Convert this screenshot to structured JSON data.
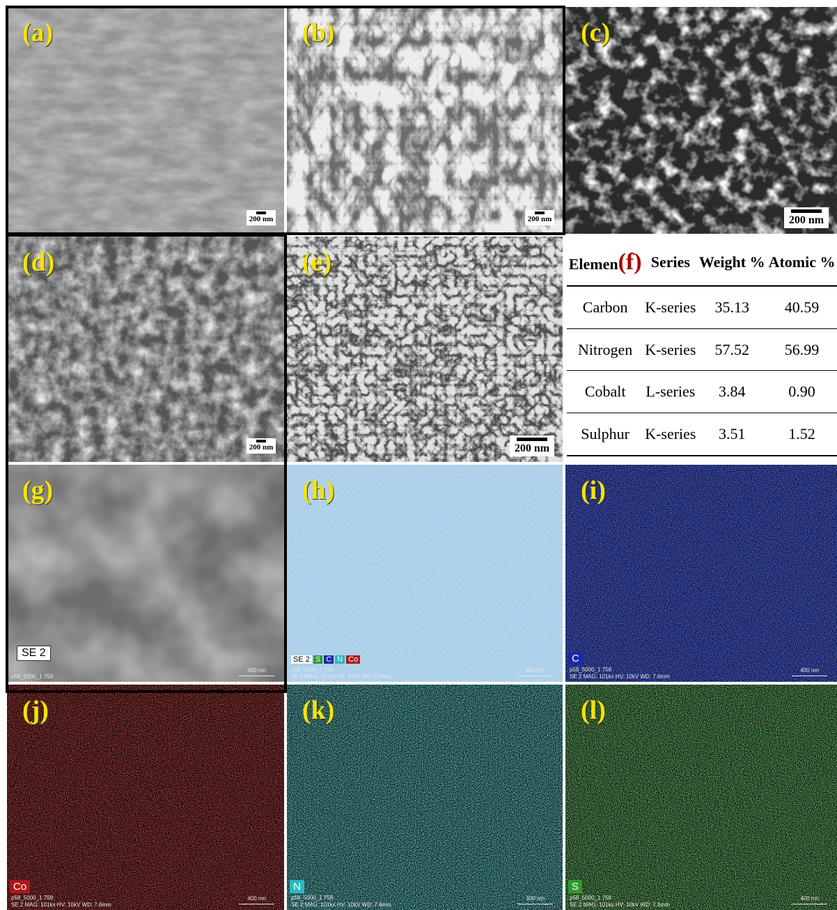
{
  "panels": {
    "a": {
      "label": "(a)",
      "scale": "200 nm"
    },
    "b": {
      "label": "(b)",
      "scale": "200 nm"
    },
    "c": {
      "label": "(c)",
      "scale": "200 nm"
    },
    "d": {
      "label": "(d)",
      "scale": "200 nm"
    },
    "e": {
      "label": "(e)",
      "scale": "200 nm"
    },
    "g": {
      "label": "(g)",
      "badge": "SE 2",
      "footer1": "p58_5000_1 758",
      "scale": "400 nm"
    },
    "h": {
      "label": "(h)",
      "chips": [
        "SE 2",
        "S",
        "C",
        "N",
        "Co"
      ],
      "footer1": "p58_5000_1 758",
      "footer2": "SE 2 MAG: 101kx HV: 10kV WD: 7.6mm",
      "scale": "400 nm"
    },
    "i": {
      "label": "(i)",
      "badge": "C",
      "footer1": "p58_5000_1 758",
      "footer2": "SE 2 MAG: 101kx HV: 10kV WD: 7.6mm",
      "scale": "400 nm"
    },
    "j": {
      "label": "(j)",
      "badge": "Co",
      "footer1": "p58_5000_1 758",
      "footer2": "SE 2 MAG: 101kx HV: 10kV WD: 7.6mm",
      "scale": "400 nm"
    },
    "k": {
      "label": "(k)",
      "badge": "N",
      "footer1": "p58_5000_1 758",
      "footer2": "SE 2 MAG: 101kx HV: 10kV WD: 7.6mm",
      "scale": "400 nm"
    },
    "l": {
      "label": "(l)",
      "badge": "S",
      "footer1": "p58_5000_1 758",
      "footer2": "SE 2 MAG: 101kx HV: 10kV WD: 7.6mm",
      "scale": "400 nm"
    }
  },
  "table": {
    "panel_label": "(f)",
    "headers": [
      "Elemen",
      "Series",
      "Weight %",
      "Atomic %"
    ],
    "rows": [
      {
        "element": "Carbon",
        "series": "K-series",
        "weight": "35.13",
        "atomic": "40.59"
      },
      {
        "element": "Nitrogen",
        "series": "K-series",
        "weight": "57.52",
        "atomic": "56.99"
      },
      {
        "element": "Cobalt",
        "series": "L-series",
        "weight": "3.84",
        "atomic": "0.90"
      },
      {
        "element": "Sulphur",
        "series": "K-series",
        "weight": "3.51",
        "atomic": "1.52"
      }
    ]
  },
  "colors": {
    "label": "#f5e400",
    "carbon_map": "#1a2aa8",
    "cobalt_map": "#b01818",
    "nitrogen_map": "#2ab8c0",
    "sulphur_map": "#2e9a2e",
    "table_f_label": "#b00000"
  }
}
